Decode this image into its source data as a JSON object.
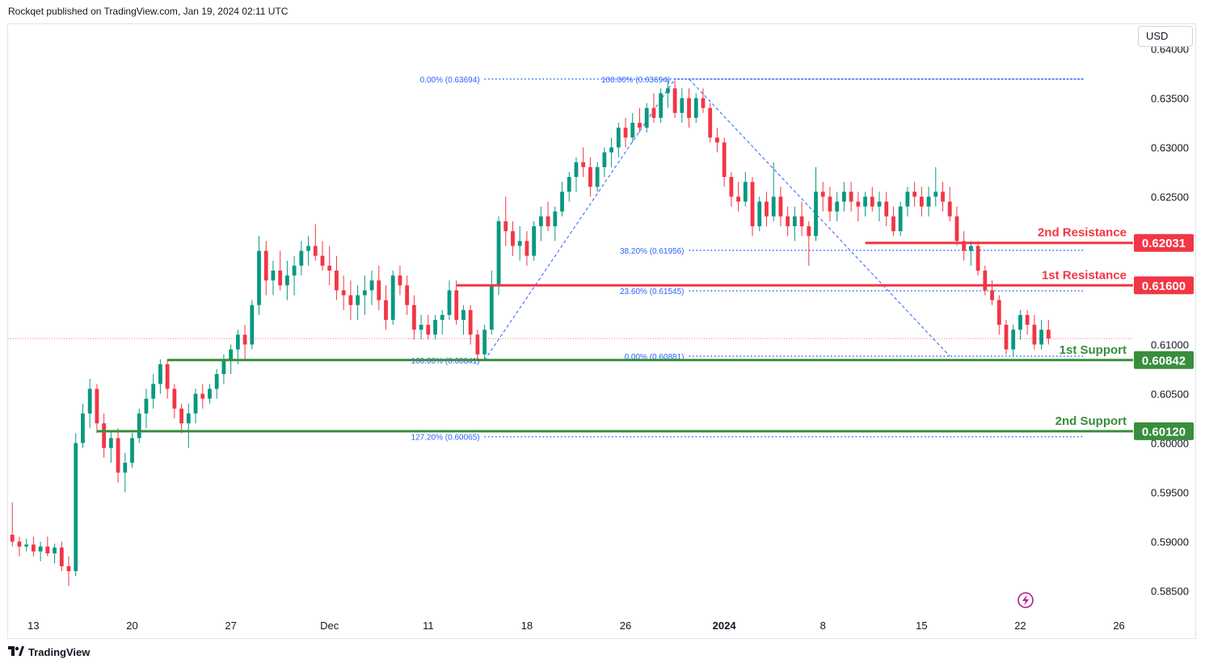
{
  "header": {
    "published_by": "Rockqet published on TradingView.com, Jan 19, 2024 02:11 UTC"
  },
  "toolbar": {
    "currency": "USD"
  },
  "footer": {
    "brand": "TradingView"
  },
  "colors": {
    "up": "#089981",
    "down": "#f23645",
    "resistance": "#f23645",
    "support": "#388e3c",
    "fib": "#2962ff",
    "last_price": "#f23645"
  },
  "chart_data": {
    "type": "candlestick",
    "y_axis": {
      "ticks": [
        "0.64000",
        "0.63500",
        "0.63000",
        "0.62500",
        "0.61000",
        "0.60500",
        "0.60000",
        "0.59500",
        "0.59000",
        "0.58500"
      ],
      "tick_values": [
        0.64,
        0.635,
        0.63,
        0.625,
        0.61,
        0.605,
        0.6,
        0.595,
        0.59,
        0.585
      ],
      "ylim": [
        0.5825,
        0.6425
      ]
    },
    "x_axis": {
      "ticks": [
        "13",
        "20",
        "27",
        "Dec",
        "11",
        "18",
        "26",
        "2024",
        "8",
        "15",
        "22",
        "26"
      ],
      "tick_positions": [
        0,
        7,
        14,
        21,
        28,
        35,
        42,
        49,
        56,
        63,
        70,
        77
      ],
      "bold": [
        "2024"
      ],
      "xlim": [
        -1.8,
        78
      ]
    },
    "levels": [
      {
        "name": "2nd Resistance",
        "value": 0.62031,
        "label": "0.62031",
        "kind": "resistance",
        "x_start": 59
      },
      {
        "name": "1st Resistance",
        "value": 0.616,
        "label": "0.61600",
        "kind": "resistance",
        "x_start": 30
      },
      {
        "name": "1st Support",
        "value": 0.60842,
        "label": "0.60842",
        "kind": "support",
        "x_start": 9.5
      },
      {
        "name": "2nd Support",
        "value": 0.6012,
        "label": "0.60120",
        "kind": "support",
        "x_start": 4.5
      }
    ],
    "fib_levels": [
      {
        "label": "0.00% (0.63694)",
        "value": 0.63694,
        "x_from": 32,
        "x_to": 74.5
      },
      {
        "label": "100.00% (0.63694)",
        "value": 0.63694,
        "x_from": 45.5,
        "x_to": 74.5
      },
      {
        "label": "38.20% (0.61956)",
        "value": 0.61956,
        "x_from": 46.5,
        "x_to": 74.5
      },
      {
        "label": "23.60% (0.61545)",
        "value": 0.61545,
        "x_from": 46.5,
        "x_to": 74.5
      },
      {
        "label": "100.00% (0.60841)",
        "value": 0.60841,
        "x_from": 32,
        "x_to": 74.5
      },
      {
        "label": "0.00% (0.60881)",
        "value": 0.60881,
        "x_from": 46.5,
        "x_to": 74.5
      },
      {
        "label": "127.20% (0.60065)",
        "value": 0.60065,
        "x_from": 32,
        "x_to": 74.5
      }
    ],
    "zigzags": [
      [
        [
          32,
          0.60841
        ],
        [
          45.5,
          0.63694
        ]
      ],
      [
        [
          46.5,
          0.63694
        ],
        [
          65,
          0.60881
        ]
      ]
    ],
    "last_price": 0.6106,
    "candles": [
      [
        -1.5,
        0.5907,
        0.594,
        0.5895,
        0.59
      ],
      [
        -1.0,
        0.59,
        0.5905,
        0.5885,
        0.5895
      ],
      [
        -0.5,
        0.5895,
        0.5903,
        0.589,
        0.5897
      ],
      [
        0.0,
        0.5897,
        0.5905,
        0.5885,
        0.589
      ],
      [
        0.5,
        0.589,
        0.59,
        0.588,
        0.5895
      ],
      [
        1.0,
        0.5895,
        0.5905,
        0.5885,
        0.5888
      ],
      [
        1.5,
        0.5888,
        0.5898,
        0.5878,
        0.5894
      ],
      [
        2.0,
        0.5894,
        0.59,
        0.587,
        0.5875
      ],
      [
        2.5,
        0.5875,
        0.5885,
        0.5855,
        0.587
      ],
      [
        3.0,
        0.587,
        0.601,
        0.5865,
        0.6
      ],
      [
        3.5,
        0.6,
        0.604,
        0.5995,
        0.603
      ],
      [
        4.0,
        0.603,
        0.6065,
        0.6015,
        0.6055
      ],
      [
        4.5,
        0.6055,
        0.606,
        0.601,
        0.602
      ],
      [
        5.0,
        0.602,
        0.603,
        0.5985,
        0.5995
      ],
      [
        5.5,
        0.5995,
        0.6012,
        0.598,
        0.6005
      ],
      [
        6.0,
        0.6005,
        0.6015,
        0.596,
        0.597
      ],
      [
        6.5,
        0.597,
        0.599,
        0.595,
        0.598
      ],
      [
        7.0,
        0.598,
        0.601,
        0.5975,
        0.6005
      ],
      [
        7.5,
        0.6005,
        0.6035,
        0.6,
        0.603
      ],
      [
        8.0,
        0.603,
        0.6055,
        0.6015,
        0.6045
      ],
      [
        8.5,
        0.6045,
        0.607,
        0.6035,
        0.606
      ],
      [
        9.0,
        0.606,
        0.6085,
        0.605,
        0.608
      ],
      [
        9.5,
        0.608,
        0.6085,
        0.6045,
        0.6055
      ],
      [
        10.0,
        0.6055,
        0.606,
        0.6025,
        0.6035
      ],
      [
        10.5,
        0.6035,
        0.604,
        0.601,
        0.602
      ],
      [
        11.0,
        0.602,
        0.604,
        0.5995,
        0.603
      ],
      [
        11.5,
        0.603,
        0.6055,
        0.602,
        0.605
      ],
      [
        12.0,
        0.605,
        0.606,
        0.6035,
        0.6045
      ],
      [
        12.5,
        0.6045,
        0.606,
        0.604,
        0.6055
      ],
      [
        13.0,
        0.6055,
        0.6075,
        0.6045,
        0.607
      ],
      [
        13.5,
        0.607,
        0.609,
        0.606,
        0.6085
      ],
      [
        14.0,
        0.6085,
        0.61,
        0.607,
        0.6095
      ],
      [
        14.5,
        0.6095,
        0.6115,
        0.608,
        0.611
      ],
      [
        15.0,
        0.611,
        0.612,
        0.6085,
        0.61
      ],
      [
        15.5,
        0.61,
        0.6145,
        0.6095,
        0.614
      ],
      [
        16.0,
        0.614,
        0.621,
        0.613,
        0.6195
      ],
      [
        16.5,
        0.6195,
        0.6205,
        0.615,
        0.6165
      ],
      [
        17.0,
        0.6165,
        0.6185,
        0.615,
        0.6175
      ],
      [
        17.5,
        0.6175,
        0.6195,
        0.6155,
        0.616
      ],
      [
        18.0,
        0.616,
        0.6185,
        0.6145,
        0.617
      ],
      [
        18.5,
        0.617,
        0.619,
        0.615,
        0.618
      ],
      [
        19.0,
        0.618,
        0.6205,
        0.617,
        0.6195
      ],
      [
        19.5,
        0.6195,
        0.621,
        0.618,
        0.62
      ],
      [
        20.0,
        0.62,
        0.6222,
        0.6185,
        0.619
      ],
      [
        20.5,
        0.619,
        0.6205,
        0.6175,
        0.618
      ],
      [
        21.0,
        0.618,
        0.62,
        0.616,
        0.6175
      ],
      [
        21.5,
        0.6175,
        0.619,
        0.6145,
        0.6155
      ],
      [
        22.0,
        0.6155,
        0.617,
        0.6135,
        0.615
      ],
      [
        22.5,
        0.615,
        0.6165,
        0.6125,
        0.614
      ],
      [
        23.0,
        0.614,
        0.616,
        0.6125,
        0.615
      ],
      [
        23.5,
        0.615,
        0.617,
        0.613,
        0.6155
      ],
      [
        24.0,
        0.6155,
        0.6175,
        0.614,
        0.6165
      ],
      [
        24.5,
        0.6165,
        0.618,
        0.6135,
        0.6145
      ],
      [
        25.0,
        0.6145,
        0.616,
        0.6115,
        0.6125
      ],
      [
        25.5,
        0.6125,
        0.6175,
        0.612,
        0.617
      ],
      [
        26.0,
        0.617,
        0.618,
        0.615,
        0.616
      ],
      [
        26.5,
        0.616,
        0.617,
        0.613,
        0.614
      ],
      [
        27.0,
        0.614,
        0.615,
        0.6105,
        0.6115
      ],
      [
        27.5,
        0.6115,
        0.613,
        0.6105,
        0.612
      ],
      [
        28.0,
        0.612,
        0.613,
        0.6105,
        0.611
      ],
      [
        28.5,
        0.611,
        0.613,
        0.6105,
        0.6125
      ],
      [
        29.0,
        0.6125,
        0.6135,
        0.611,
        0.613
      ],
      [
        29.5,
        0.613,
        0.6165,
        0.6125,
        0.6155
      ],
      [
        30.0,
        0.6155,
        0.6165,
        0.612,
        0.6125
      ],
      [
        30.5,
        0.6125,
        0.614,
        0.611,
        0.6135
      ],
      [
        31.0,
        0.6135,
        0.614,
        0.61,
        0.611
      ],
      [
        31.5,
        0.611,
        0.6115,
        0.6085,
        0.609
      ],
      [
        32.0,
        0.609,
        0.612,
        0.6084,
        0.6115
      ],
      [
        32.5,
        0.6115,
        0.6175,
        0.611,
        0.616
      ],
      [
        33.0,
        0.616,
        0.623,
        0.615,
        0.6225
      ],
      [
        33.5,
        0.6225,
        0.625,
        0.62,
        0.6215
      ],
      [
        34.0,
        0.6215,
        0.6225,
        0.619,
        0.62
      ],
      [
        34.5,
        0.62,
        0.622,
        0.6185,
        0.6205
      ],
      [
        35.0,
        0.6205,
        0.6215,
        0.618,
        0.619
      ],
      [
        35.5,
        0.619,
        0.6225,
        0.6185,
        0.622
      ],
      [
        36.0,
        0.622,
        0.624,
        0.6205,
        0.623
      ],
      [
        36.5,
        0.623,
        0.6245,
        0.6215,
        0.622
      ],
      [
        37.0,
        0.622,
        0.624,
        0.6205,
        0.6235
      ],
      [
        37.5,
        0.6235,
        0.6265,
        0.623,
        0.6255
      ],
      [
        38.0,
        0.6255,
        0.6275,
        0.6245,
        0.627
      ],
      [
        38.5,
        0.627,
        0.629,
        0.6255,
        0.6285
      ],
      [
        39.0,
        0.6285,
        0.63,
        0.627,
        0.628
      ],
      [
        39.5,
        0.628,
        0.629,
        0.625,
        0.626
      ],
      [
        40.0,
        0.626,
        0.6285,
        0.6255,
        0.628
      ],
      [
        40.5,
        0.628,
        0.63,
        0.627,
        0.6295
      ],
      [
        41.0,
        0.6295,
        0.631,
        0.628,
        0.63
      ],
      [
        41.5,
        0.63,
        0.6325,
        0.629,
        0.632
      ],
      [
        42.0,
        0.632,
        0.633,
        0.63,
        0.631
      ],
      [
        42.5,
        0.631,
        0.6335,
        0.6305,
        0.6325
      ],
      [
        43.0,
        0.6325,
        0.634,
        0.6315,
        0.632
      ],
      [
        43.5,
        0.632,
        0.6345,
        0.6315,
        0.634
      ],
      [
        44.0,
        0.634,
        0.6355,
        0.6325,
        0.633
      ],
      [
        44.5,
        0.633,
        0.636,
        0.6325,
        0.6355
      ],
      [
        45.0,
        0.6355,
        0.6369,
        0.634,
        0.636
      ],
      [
        45.5,
        0.636,
        0.6368,
        0.633,
        0.6335
      ],
      [
        46.0,
        0.6335,
        0.636,
        0.6325,
        0.635
      ],
      [
        46.5,
        0.635,
        0.636,
        0.632,
        0.633
      ],
      [
        47.0,
        0.633,
        0.6355,
        0.6325,
        0.635
      ],
      [
        47.5,
        0.635,
        0.636,
        0.6335,
        0.634
      ],
      [
        48.0,
        0.634,
        0.6345,
        0.6305,
        0.631
      ],
      [
        48.5,
        0.631,
        0.632,
        0.6295,
        0.6305
      ],
      [
        49.0,
        0.6305,
        0.631,
        0.626,
        0.627
      ],
      [
        49.5,
        0.627,
        0.6275,
        0.624,
        0.625
      ],
      [
        50.0,
        0.625,
        0.6265,
        0.6235,
        0.6245
      ],
      [
        50.5,
        0.6245,
        0.6275,
        0.624,
        0.6265
      ],
      [
        51.0,
        0.6265,
        0.627,
        0.621,
        0.622
      ],
      [
        51.5,
        0.622,
        0.625,
        0.6215,
        0.6245
      ],
      [
        52.0,
        0.6245,
        0.6255,
        0.622,
        0.623
      ],
      [
        52.5,
        0.623,
        0.6285,
        0.6225,
        0.625
      ],
      [
        53.0,
        0.625,
        0.626,
        0.622,
        0.623
      ],
      [
        53.5,
        0.623,
        0.624,
        0.621,
        0.622
      ],
      [
        54.0,
        0.622,
        0.624,
        0.6205,
        0.623
      ],
      [
        54.5,
        0.623,
        0.6245,
        0.621,
        0.622
      ],
      [
        55.0,
        0.622,
        0.6225,
        0.618,
        0.621
      ],
      [
        55.5,
        0.621,
        0.628,
        0.6205,
        0.6255
      ],
      [
        56.0,
        0.6255,
        0.6265,
        0.6235,
        0.625
      ],
      [
        56.5,
        0.625,
        0.626,
        0.6225,
        0.6235
      ],
      [
        57.0,
        0.6235,
        0.6255,
        0.6225,
        0.6245
      ],
      [
        57.5,
        0.6245,
        0.6265,
        0.6235,
        0.6255
      ],
      [
        58.0,
        0.6255,
        0.6265,
        0.6235,
        0.6245
      ],
      [
        58.5,
        0.6245,
        0.6255,
        0.6225,
        0.624
      ],
      [
        59.0,
        0.624,
        0.6255,
        0.623,
        0.625
      ],
      [
        59.5,
        0.625,
        0.626,
        0.6235,
        0.624
      ],
      [
        60.0,
        0.624,
        0.6255,
        0.6225,
        0.6245
      ],
      [
        60.5,
        0.6245,
        0.6255,
        0.622,
        0.623
      ],
      [
        61.0,
        0.623,
        0.624,
        0.621,
        0.6215
      ],
      [
        61.5,
        0.6215,
        0.6245,
        0.621,
        0.624
      ],
      [
        62.0,
        0.624,
        0.626,
        0.623,
        0.6255
      ],
      [
        62.5,
        0.6255,
        0.6265,
        0.624,
        0.625
      ],
      [
        63.0,
        0.625,
        0.626,
        0.623,
        0.624
      ],
      [
        63.5,
        0.624,
        0.626,
        0.623,
        0.625
      ],
      [
        64.0,
        0.625,
        0.628,
        0.624,
        0.6255
      ],
      [
        64.5,
        0.6255,
        0.6265,
        0.6235,
        0.6245
      ],
      [
        65.0,
        0.6245,
        0.626,
        0.6225,
        0.623
      ],
      [
        65.5,
        0.623,
        0.624,
        0.62,
        0.6205
      ],
      [
        66.0,
        0.6205,
        0.6215,
        0.6185,
        0.6195
      ],
      [
        66.5,
        0.6195,
        0.6205,
        0.618,
        0.62
      ],
      [
        67.0,
        0.62,
        0.6205,
        0.617,
        0.6175
      ],
      [
        67.5,
        0.6175,
        0.618,
        0.615,
        0.6155
      ],
      [
        68.0,
        0.6155,
        0.6165,
        0.614,
        0.6145
      ],
      [
        68.5,
        0.6145,
        0.615,
        0.611,
        0.612
      ],
      [
        69.0,
        0.612,
        0.6125,
        0.609,
        0.6095
      ],
      [
        69.5,
        0.6095,
        0.612,
        0.6088,
        0.6115
      ],
      [
        70.0,
        0.6115,
        0.6135,
        0.6105,
        0.613
      ],
      [
        70.5,
        0.613,
        0.6135,
        0.611,
        0.612
      ],
      [
        71.0,
        0.612,
        0.613,
        0.6095,
        0.61
      ],
      [
        71.5,
        0.61,
        0.6125,
        0.6095,
        0.6115
      ],
      [
        72.0,
        0.6115,
        0.6125,
        0.61,
        0.6106
      ]
    ]
  }
}
